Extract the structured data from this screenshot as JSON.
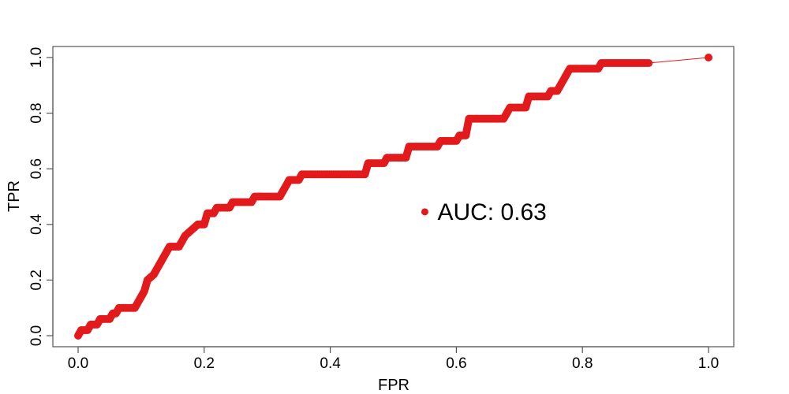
{
  "chart_data": {
    "type": "line",
    "title": "",
    "xlabel": "FPR",
    "ylabel": "TPR",
    "xlim": [
      0.0,
      1.0
    ],
    "ylim": [
      0.0,
      1.0
    ],
    "x_ticks": [
      "0.0",
      "0.2",
      "0.4",
      "0.6",
      "0.8",
      "1.0"
    ],
    "y_ticks": [
      "0.0",
      "0.2",
      "0.4",
      "0.6",
      "0.8",
      "1.0"
    ],
    "grid": false,
    "legend": "none",
    "series": [
      {
        "points": [
          [
            0.0,
            0.0
          ],
          [
            0.005,
            0.02
          ],
          [
            0.015,
            0.02
          ],
          [
            0.02,
            0.04
          ],
          [
            0.03,
            0.04
          ],
          [
            0.035,
            0.06
          ],
          [
            0.05,
            0.06
          ],
          [
            0.055,
            0.08
          ],
          [
            0.06,
            0.08
          ],
          [
            0.065,
            0.1
          ],
          [
            0.09,
            0.1
          ],
          [
            0.095,
            0.12
          ],
          [
            0.1,
            0.14
          ],
          [
            0.105,
            0.16
          ],
          [
            0.11,
            0.2
          ],
          [
            0.12,
            0.22
          ],
          [
            0.125,
            0.24
          ],
          [
            0.13,
            0.26
          ],
          [
            0.135,
            0.28
          ],
          [
            0.14,
            0.3
          ],
          [
            0.145,
            0.32
          ],
          [
            0.16,
            0.32
          ],
          [
            0.165,
            0.34
          ],
          [
            0.17,
            0.36
          ],
          [
            0.18,
            0.38
          ],
          [
            0.19,
            0.4
          ],
          [
            0.2,
            0.4
          ],
          [
            0.205,
            0.44
          ],
          [
            0.215,
            0.44
          ],
          [
            0.22,
            0.46
          ],
          [
            0.24,
            0.46
          ],
          [
            0.245,
            0.48
          ],
          [
            0.275,
            0.48
          ],
          [
            0.28,
            0.5
          ],
          [
            0.32,
            0.5
          ],
          [
            0.325,
            0.52
          ],
          [
            0.33,
            0.54
          ],
          [
            0.335,
            0.56
          ],
          [
            0.35,
            0.56
          ],
          [
            0.355,
            0.58
          ],
          [
            0.455,
            0.58
          ],
          [
            0.46,
            0.62
          ],
          [
            0.485,
            0.62
          ],
          [
            0.49,
            0.64
          ],
          [
            0.52,
            0.64
          ],
          [
            0.525,
            0.68
          ],
          [
            0.57,
            0.68
          ],
          [
            0.575,
            0.7
          ],
          [
            0.6,
            0.7
          ],
          [
            0.605,
            0.72
          ],
          [
            0.615,
            0.72
          ],
          [
            0.62,
            0.78
          ],
          [
            0.675,
            0.78
          ],
          [
            0.68,
            0.8
          ],
          [
            0.685,
            0.82
          ],
          [
            0.71,
            0.82
          ],
          [
            0.715,
            0.86
          ],
          [
            0.745,
            0.86
          ],
          [
            0.75,
            0.88
          ],
          [
            0.76,
            0.88
          ],
          [
            0.765,
            0.9
          ],
          [
            0.77,
            0.92
          ],
          [
            0.775,
            0.94
          ],
          [
            0.78,
            0.96
          ],
          [
            0.825,
            0.96
          ],
          [
            0.83,
            0.98
          ],
          [
            0.905,
            0.98
          ],
          [
            1.0,
            1.0
          ]
        ]
      }
    ],
    "annotation": {
      "text": "AUC: 0.63",
      "x": 0.55,
      "y": 0.55
    },
    "colors": {
      "line": "#e31a1c",
      "axis": "#555555"
    }
  }
}
